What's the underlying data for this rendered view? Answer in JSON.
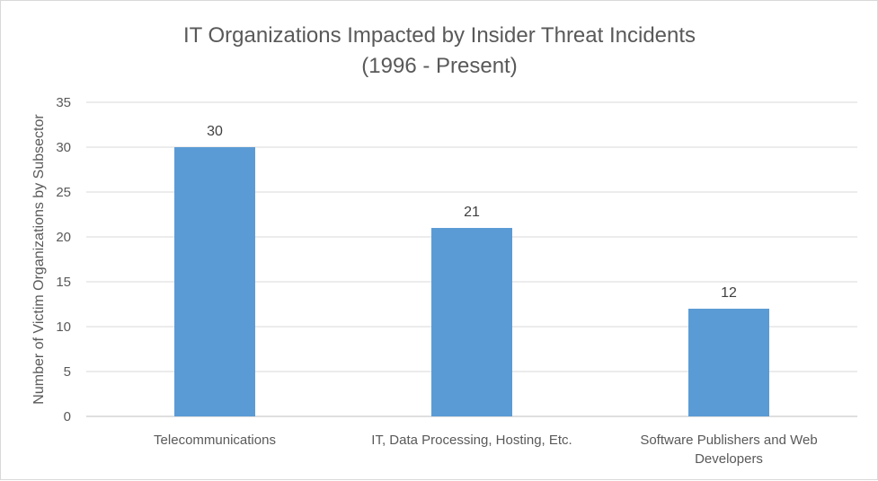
{
  "chart_data": {
    "type": "bar",
    "title": "IT Organizations Impacted by Insider Threat Incidents",
    "subtitle": "(1996 - Present)",
    "xlabel": "",
    "ylabel": "Number of Victim Organizations by Subsector",
    "categories": [
      "Telecommunications",
      "IT, Data Processing, Hosting, Etc.",
      "Software Publishers and Web Developers"
    ],
    "category_lines": [
      [
        "Telecommunications"
      ],
      [
        "IT, Data Processing, Hosting, Etc."
      ],
      [
        "Software Publishers and Web",
        "Developers"
      ]
    ],
    "values": [
      30,
      21,
      12
    ],
    "ylim": [
      0,
      35
    ],
    "yticks": [
      0,
      5,
      10,
      15,
      20,
      25,
      30,
      35
    ],
    "grid": true,
    "legend": "none",
    "bar_color": "#5b9bd5",
    "grid_color": "#d9d9d9"
  }
}
